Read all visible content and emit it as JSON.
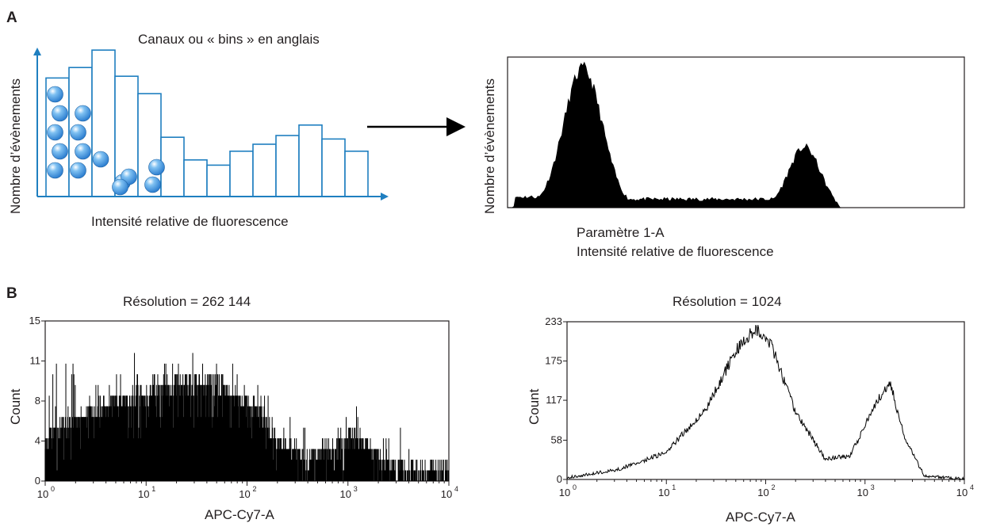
{
  "panel_a": {
    "label": "A",
    "bins_title": "Canaux ou « bins » en anglais",
    "left_ylabel": "Nombre d’évènements",
    "left_xlabel": "Intensité relative de fluorescence",
    "right_ylabel": "Nombre d’évènements",
    "right_xlabel_line1": "Paramètre 1-A",
    "right_xlabel_line2": "Intensité relative de fluorescence"
  },
  "panel_b": {
    "label": "B"
  },
  "colors": {
    "bin_stroke": "#1f7fc0",
    "sphere": "#2e7fd0",
    "fill_black": "#000000",
    "axis": "#231f20"
  },
  "chart_data": [
    {
      "type": "bar",
      "name": "bins-schematic",
      "bin_heights": [
        6.8,
        7.4,
        8.4,
        6.9,
        5.9,
        3.4,
        2.1,
        1.8,
        2.6,
        3.0,
        3.5,
        4.1,
        3.3,
        2.6
      ],
      "spheres_per_bin": [
        5,
        4,
        0,
        3,
        2
      ],
      "ylim": [
        0,
        9
      ]
    },
    {
      "type": "area",
      "name": "parameter-1a-histogram",
      "xlim": [
        0,
        100
      ],
      "ylim": [
        0,
        100
      ],
      "profile": [
        {
          "mu": 16.5,
          "sigma": 4.2,
          "amp": 92
        },
        {
          "mu": 65.0,
          "sigma": 3.4,
          "amp": 40
        }
      ],
      "baseline_level": 7,
      "baseline_end": 73
    },
    {
      "type": "bar",
      "name": "resolution-262144",
      "title": "Résolution = 262 144",
      "xlabel": "APC-Cy7-A",
      "ylabel": "Count",
      "xscale": "log",
      "xlim": [
        1,
        10000
      ],
      "xticks": [
        {
          "base": "10",
          "exp": "0"
        },
        {
          "base": "10",
          "exp": "1"
        },
        {
          "base": "10",
          "exp": "2"
        },
        {
          "base": "10",
          "exp": "3"
        },
        {
          "base": "10",
          "exp": "4"
        }
      ],
      "ylim": [
        0,
        15
      ],
      "yticks": [
        "0",
        "4",
        "8",
        "11",
        "15"
      ],
      "ytick_values": [
        0,
        3.75,
        7.5,
        11.25,
        15
      ],
      "envelope": [
        {
          "log10x": 0.0,
          "count": 4
        },
        {
          "log10x": 0.2,
          "count": 5
        },
        {
          "log10x": 0.6,
          "count": 7
        },
        {
          "log10x": 1.0,
          "count": 8
        },
        {
          "log10x": 1.35,
          "count": 9
        },
        {
          "log10x": 1.7,
          "count": 9
        },
        {
          "log10x": 2.05,
          "count": 7
        },
        {
          "log10x": 2.3,
          "count": 4
        },
        {
          "log10x": 2.6,
          "count": 2
        },
        {
          "log10x": 2.85,
          "count": 3
        },
        {
          "log10x": 3.1,
          "count": 4
        },
        {
          "log10x": 3.3,
          "count": 2
        },
        {
          "log10x": 3.6,
          "count": 1
        },
        {
          "log10x": 4.0,
          "count": 1
        }
      ]
    },
    {
      "type": "line",
      "name": "resolution-1024",
      "title": "Résolution = 1024",
      "xlabel": "APC-Cy7-A",
      "ylabel": "Count",
      "xscale": "log",
      "xlim": [
        1,
        10000
      ],
      "xticks": [
        {
          "base": "10",
          "exp": "0"
        },
        {
          "base": "10",
          "exp": "1"
        },
        {
          "base": "10",
          "exp": "2"
        },
        {
          "base": "10",
          "exp": "3"
        },
        {
          "base": "10",
          "exp": "4"
        }
      ],
      "ylim": [
        0,
        233
      ],
      "yticks": [
        "0",
        "58",
        "117",
        "175",
        "233"
      ],
      "ytick_values": [
        0,
        58,
        117,
        175,
        233
      ],
      "envelope": [
        {
          "log10x": 0.0,
          "count": 3
        },
        {
          "log10x": 0.5,
          "count": 14
        },
        {
          "log10x": 1.0,
          "count": 40
        },
        {
          "log10x": 1.4,
          "count": 105
        },
        {
          "log10x": 1.7,
          "count": 190
        },
        {
          "log10x": 1.9,
          "count": 225
        },
        {
          "log10x": 2.05,
          "count": 200
        },
        {
          "log10x": 2.3,
          "count": 100
        },
        {
          "log10x": 2.6,
          "count": 30
        },
        {
          "log10x": 2.85,
          "count": 35
        },
        {
          "log10x": 3.1,
          "count": 110
        },
        {
          "log10x": 3.25,
          "count": 145
        },
        {
          "log10x": 3.4,
          "count": 60
        },
        {
          "log10x": 3.6,
          "count": 5
        },
        {
          "log10x": 4.0,
          "count": 1
        }
      ]
    }
  ]
}
